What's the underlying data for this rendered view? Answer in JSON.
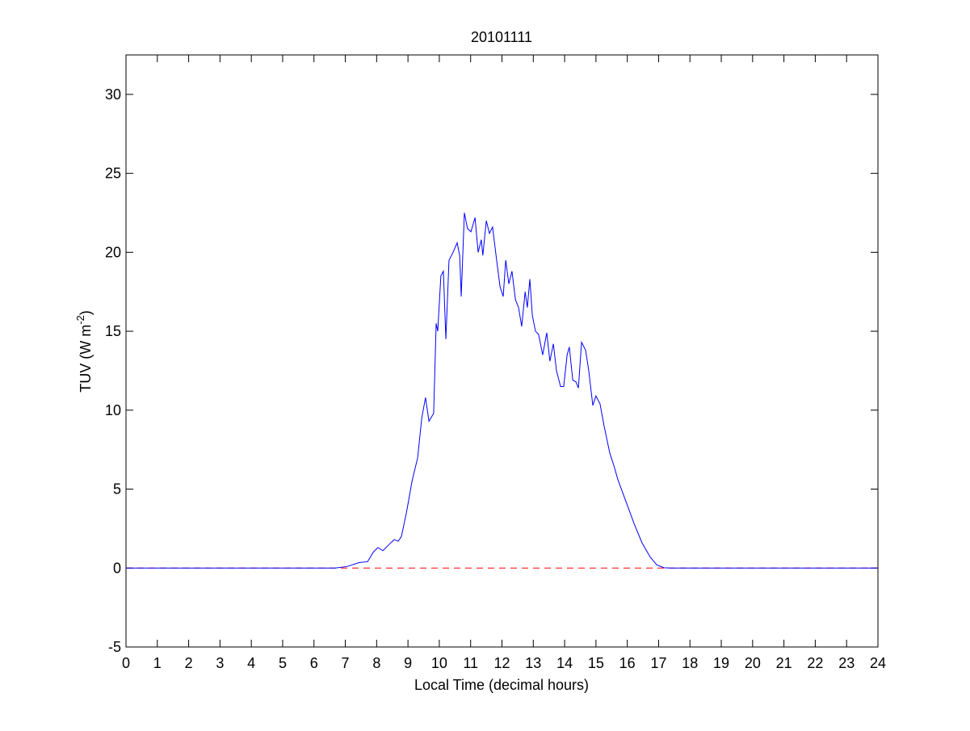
{
  "chart_data": {
    "type": "line",
    "title": "20101111",
    "x_label": "Local Time (decimal hours)",
    "y_label": [
      "TUV (W m",
      "-2",
      ")"
    ],
    "xlim": [
      0,
      24
    ],
    "xticks": [
      0,
      1,
      2,
      3,
      4,
      5,
      6,
      7,
      8,
      9,
      10,
      11,
      12,
      13,
      14,
      15,
      16,
      17,
      18,
      19,
      20,
      21,
      22,
      23,
      24
    ],
    "ylim": [
      -5,
      32.5
    ],
    "yticks": [
      -5,
      0,
      5,
      10,
      15,
      20,
      25,
      30
    ],
    "reference_line": {
      "y": 0,
      "color": "#ff0000",
      "dashed": true
    },
    "series": [
      {
        "color": "#0000ff",
        "x": [
          0,
          6.68,
          7.06,
          7.45,
          7.71,
          7.89,
          8.04,
          8.2,
          8.4,
          8.56,
          8.69,
          8.79,
          8.95,
          9.13,
          9.31,
          9.44,
          9.56,
          9.67,
          9.82,
          9.9,
          9.95,
          10.05,
          10.13,
          10.21,
          10.31,
          10.44,
          10.57,
          10.65,
          10.7,
          10.8,
          10.9,
          11.01,
          11.14,
          11.24,
          11.34,
          11.39,
          11.5,
          11.6,
          11.7,
          11.83,
          11.94,
          12.04,
          12.12,
          12.22,
          12.32,
          12.43,
          12.53,
          12.63,
          12.74,
          12.81,
          12.89,
          12.97,
          13.07,
          13.17,
          13.3,
          13.43,
          13.53,
          13.64,
          13.74,
          13.87,
          13.97,
          14.08,
          14.15,
          14.26,
          14.36,
          14.44,
          14.54,
          14.67,
          14.77,
          14.9,
          15,
          15.13,
          15.26,
          15.44,
          15.57,
          15.7,
          15.96,
          16.22,
          16.47,
          16.73,
          16.94,
          17.17,
          17.38,
          24
        ],
        "values": [
          0,
          0,
          0.1,
          0.35,
          0.4,
          1.0,
          1.3,
          1.1,
          1.5,
          1.8,
          1.7,
          2.0,
          3.5,
          5.5,
          7.0,
          9.5,
          10.8,
          9.3,
          9.8,
          15.5,
          15.0,
          18.5,
          18.8,
          14.5,
          19.5,
          20.0,
          20.6,
          19.8,
          17.2,
          22.5,
          21.5,
          21.3,
          22.2,
          20.0,
          20.8,
          19.8,
          22.0,
          21.2,
          21.6,
          19.5,
          17.8,
          17.2,
          19.5,
          18.0,
          18.8,
          17.0,
          16.5,
          15.3,
          17.5,
          16.5,
          18.3,
          16.0,
          15.0,
          14.8,
          13.5,
          14.9,
          13.1,
          14.2,
          12.5,
          11.5,
          11.5,
          13.5,
          14.0,
          11.9,
          11.8,
          11.4,
          14.3,
          13.8,
          12.5,
          10.3,
          10.9,
          10.4,
          9.0,
          7.3,
          6.5,
          5.6,
          4.2,
          2.8,
          1.6,
          0.7,
          0.2,
          0.02,
          0,
          0
        ]
      }
    ]
  }
}
